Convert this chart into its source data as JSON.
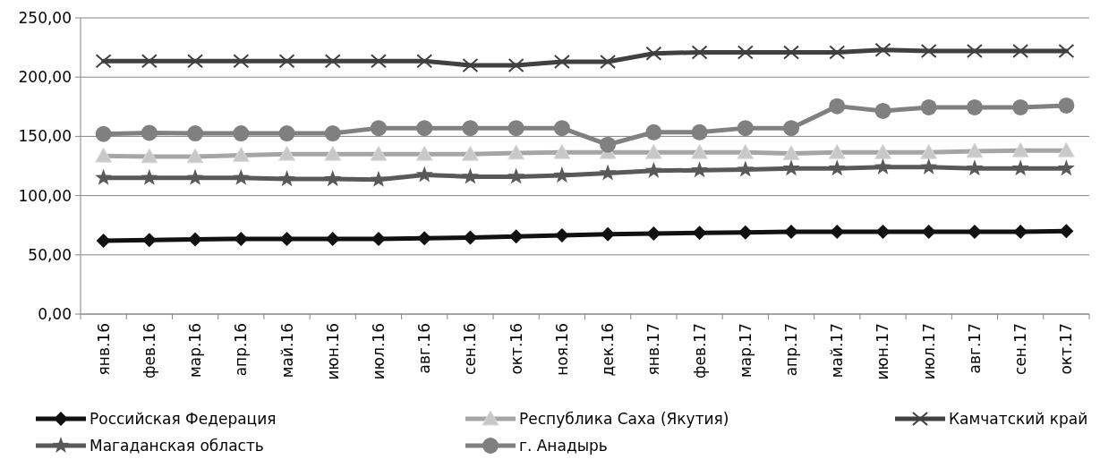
{
  "chart_data": {
    "type": "line",
    "categories": [
      "янв.16",
      "фев.16",
      "мар.16",
      "апр.16",
      "май.16",
      "июн.16",
      "июл.16",
      "авг.16",
      "сен.16",
      "окт.16",
      "ноя.16",
      "дек.16",
      "янв.17",
      "фев.17",
      "мар.17",
      "апр.17",
      "май.17",
      "июн.17",
      "июл.17",
      "авг.17",
      "сен.17",
      "окт.17"
    ],
    "ylim": [
      0,
      250
    ],
    "yticks": [
      {
        "value": 0,
        "label": "0,00"
      },
      {
        "value": 50,
        "label": "50,00"
      },
      {
        "value": 100,
        "label": "100,00"
      },
      {
        "value": 150,
        "label": "150,00"
      },
      {
        "value": 200,
        "label": "200,00"
      },
      {
        "value": 250,
        "label": "250,00"
      }
    ],
    "grid": "y",
    "legend": "bottom",
    "line_style": "solid",
    "series": [
      {
        "name": "Российская Федерация",
        "color": "#111111",
        "marker": "diamond",
        "values": [
          62,
          62.5,
          63,
          63.5,
          63.5,
          63.5,
          63.5,
          64,
          64.5,
          65.5,
          66.5,
          67.5,
          68,
          68.5,
          69,
          69.5,
          69.5,
          69.5,
          69.5,
          69.5,
          69.5,
          70
        ]
      },
      {
        "name": "Республика Саха (Якутия)",
        "color": "#a6a6a6",
        "marker": "triangle",
        "values": [
          133.5,
          133,
          133,
          134,
          135,
          135,
          135,
          135,
          135,
          136,
          136.5,
          136.5,
          136.5,
          136.5,
          136.5,
          135.5,
          136.5,
          136.5,
          136.5,
          137.5,
          138,
          138
        ]
      },
      {
        "name": "Камчатский край",
        "color": "#404040",
        "marker": "cross",
        "values": [
          213.5,
          213.5,
          213.5,
          213.5,
          213.5,
          213.5,
          213.5,
          213.5,
          210,
          210,
          213,
          213,
          220,
          221,
          221,
          221,
          221,
          223,
          222,
          222,
          222,
          222
        ]
      },
      {
        "name": "Магаданская область",
        "color": "#595959",
        "marker": "star",
        "values": [
          115,
          115,
          115,
          115,
          114,
          114,
          113.5,
          117.5,
          116,
          116,
          117,
          119,
          121,
          121.5,
          122,
          123,
          123,
          124,
          124,
          123,
          123,
          123
        ]
      },
      {
        "name": "г. Анадырь",
        "color": "#808080",
        "marker": "circle",
        "values": [
          152,
          153,
          152.5,
          152.5,
          152.5,
          152.5,
          157,
          157,
          157,
          157,
          157,
          143,
          153.5,
          153.5,
          157,
          157,
          175.5,
          171.5,
          174.5,
          174.5,
          174.5,
          176
        ]
      }
    ]
  }
}
